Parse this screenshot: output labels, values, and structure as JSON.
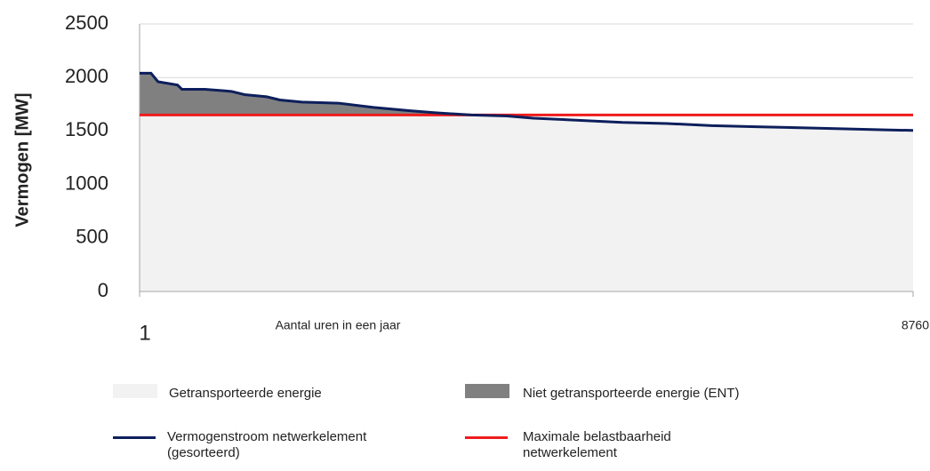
{
  "chart_data": {
    "type": "line",
    "y_label": "Vermogen [MW]",
    "x_label": "Aantal uren in een jaar",
    "xlim": [
      1,
      8760
    ],
    "xticks": [
      1,
      8760
    ],
    "ylim": [
      0,
      2500
    ],
    "yticks": [
      0,
      500,
      1000,
      1500,
      2000,
      2500
    ],
    "grid": true,
    "areas": [
      {
        "name": "Getransporteerde energie",
        "color": "#f2f2f2"
      },
      {
        "name": "Niet getransporteerde energie (ENT)",
        "color": "#808080"
      }
    ],
    "series": [
      {
        "name": "Vermogenstroom netwerkelement (gesorteerd)",
        "color": "#0d1f5c",
        "x": [
          1,
          130,
          210,
          430,
          480,
          740,
          1040,
          1190,
          1440,
          1590,
          1840,
          2250,
          2650,
          3050,
          3350,
          3760,
          4160,
          4460,
          4970,
          5470,
          5970,
          6480,
          6980,
          7480,
          7990,
          8490,
          8760
        ],
        "values": [
          2040,
          2040,
          1960,
          1930,
          1890,
          1890,
          1870,
          1840,
          1820,
          1790,
          1770,
          1760,
          1720,
          1690,
          1670,
          1650,
          1640,
          1620,
          1600,
          1580,
          1570,
          1550,
          1540,
          1530,
          1520,
          1510,
          1505
        ]
      },
      {
        "name": "Maximale belastbaarheid netwerkelement",
        "color": "#ee1c1c",
        "x": [
          1,
          8760
        ],
        "values": [
          1650,
          1650
        ]
      }
    ]
  }
}
